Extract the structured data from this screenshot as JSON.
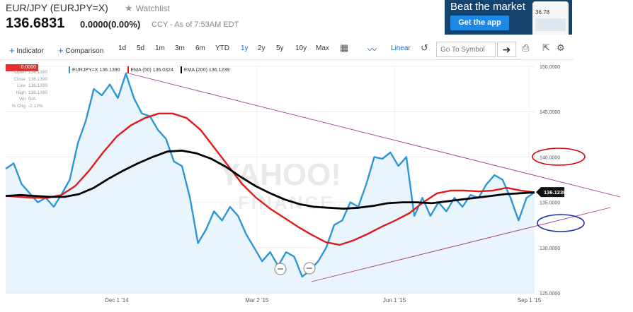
{
  "header": {
    "title": "EUR/JPY (EURJPY=X)",
    "watchlist": "Watchlist",
    "price": "136.6831",
    "change": "0.0000(0.00%)",
    "as_of": "CCY - As of 7:53AM EDT"
  },
  "ad": {
    "title": "Beat the market",
    "button": "Get the app",
    "phone_value": "36.78"
  },
  "toolbar": {
    "indicator": "Indicator",
    "comparison": "Comparison",
    "ranges": [
      "1d",
      "5d",
      "1m",
      "3m",
      "6m",
      "YTD",
      "1y",
      "2y",
      "5y",
      "10y",
      "Max"
    ],
    "active_range": "1y",
    "linear": "Linear",
    "search_placeholder": "Go To Symbol",
    "go_icon": "arrow-right-icon",
    "icons": [
      "calendar-icon",
      "line-chart-icon",
      "undo-icon",
      "print-icon",
      "expand-icon",
      "gear-icon"
    ]
  },
  "legend": {
    "series1": "EURJPY=X 136.1390",
    "series2": "EMA (50) 136.0324",
    "series3": "EMA (200) 136.1239"
  },
  "ohlc": [
    {
      "k": "Open",
      "v": "136.1390"
    },
    {
      "k": "Close",
      "v": "136.1390"
    },
    {
      "k": "Low",
      "v": "136.1390"
    },
    {
      "k": "High",
      "v": "136.1390"
    },
    {
      "k": "Vol",
      "v": "N/A"
    },
    {
      "k": "% Chg",
      "v": "-2.13%"
    }
  ],
  "badge": "0.0000",
  "last_value_label": "136.1239",
  "watermark": {
    "line1": "YAHOO!",
    "line2": "FINANCE"
  },
  "colors": {
    "price": "#2d96d8",
    "ema50": "#e01b1b",
    "ema200": "#000000",
    "trend": "#9b3a8c",
    "circle_red": "#d60000",
    "circle_blue": "#1f2fb0",
    "area": "#e6f2fb"
  },
  "chart_data": {
    "type": "line",
    "xlabels": [
      "Dec 1 '14",
      "Mar 2 '15",
      "Jun 1 '15",
      "Sep 1 '15"
    ],
    "yticks": [
      "150.0000",
      "145.0000",
      "140.0000",
      "135.0000",
      "130.0000",
      "125.0000"
    ],
    "ylim": [
      125,
      150
    ],
    "series": [
      {
        "name": "EURJPY=X 136.1390",
        "color": "#2d96d8",
        "values": [
          138.7,
          139.3,
          137.0,
          136.0,
          135.0,
          135.5,
          134.5,
          135.9,
          137.5,
          141.5,
          144.0,
          147.5,
          146.8,
          148.0,
          146.5,
          149.2,
          146.5,
          144.8,
          144.5,
          143.0,
          142.0,
          139.5,
          139.0,
          135.5,
          130.5,
          132.0,
          134.0,
          133.0,
          134.5,
          133.5,
          131.5,
          130.0,
          128.5,
          129.5,
          128.0,
          129.5,
          129.0,
          126.8,
          127.5,
          128.5,
          130.0,
          132.5,
          133.0,
          135.0,
          134.5,
          137.0,
          140.0,
          139.8,
          140.5,
          139.0,
          140.0,
          133.5,
          135.5,
          133.5,
          135.0,
          134.0,
          135.5,
          134.5,
          135.8,
          135.5,
          137.0,
          138.0,
          137.5,
          135.5,
          133.0,
          135.5,
          136.1
        ]
      },
      {
        "name": "EMA (50) 136.0324",
        "color": "#e01b1b",
        "values": [
          135.7,
          135.6,
          135.5,
          135.5,
          135.8,
          136.8,
          138.5,
          140.5,
          142.3,
          143.5,
          144.3,
          144.8,
          144.8,
          144.3,
          143.0,
          141.0,
          139.0,
          137.0,
          135.5,
          134.3,
          133.3,
          132.3,
          131.4,
          130.6,
          130.3,
          130.8,
          131.5,
          132.3,
          133.0,
          133.8,
          135.0,
          136.0,
          136.3,
          136.3,
          136.2,
          136.3,
          136.6,
          136.3,
          136.1
        ]
      },
      {
        "name": "EMA (200) 136.1239",
        "color": "#000000",
        "values": [
          135.7,
          135.8,
          135.7,
          135.6,
          135.6,
          135.9,
          136.6,
          137.6,
          138.5,
          139.3,
          140.0,
          140.6,
          140.7,
          140.4,
          139.8,
          138.9,
          137.8,
          136.8,
          136.0,
          135.3,
          134.8,
          134.5,
          134.4,
          134.3,
          134.4,
          134.6,
          134.9,
          135.0,
          135.0,
          134.9,
          135.1,
          135.3,
          135.5,
          135.7,
          135.9,
          136.0,
          136.1
        ]
      }
    ]
  }
}
